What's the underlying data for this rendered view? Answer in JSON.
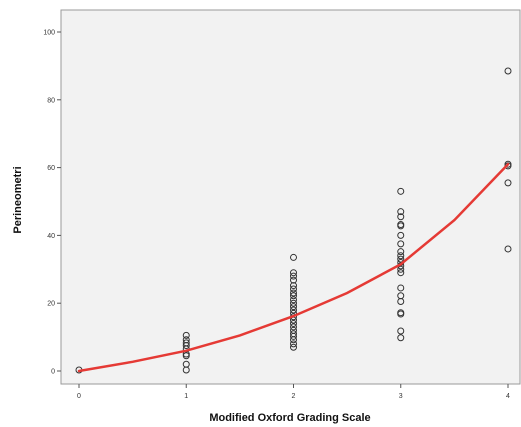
{
  "chart_data": {
    "type": "scatter",
    "title": "",
    "xlabel": "Modified Oxford Grading Scale",
    "ylabel": "Perineometri",
    "xlim": [
      0,
      4
    ],
    "ylim": [
      0,
      100
    ],
    "x_ticks": [
      0,
      1,
      2,
      3,
      4
    ],
    "y_ticks": [
      0,
      20,
      40,
      60,
      80,
      100
    ],
    "grid": false,
    "legend": "none",
    "colors": {
      "points": "#333333",
      "fit_line": "#e53a35",
      "plot_bg": "#f2f2f2",
      "frame": "#9a9a9a"
    },
    "series": [
      {
        "type": "scatter",
        "marker": "open-circle",
        "points": [
          {
            "x": 0,
            "y": 0.3
          },
          {
            "x": 1,
            "y": 0.3
          },
          {
            "x": 1,
            "y": 2.0
          },
          {
            "x": 1,
            "y": 4.5
          },
          {
            "x": 1,
            "y": 5.0
          },
          {
            "x": 1,
            "y": 6.5
          },
          {
            "x": 1,
            "y": 7.5
          },
          {
            "x": 1,
            "y": 8.3
          },
          {
            "x": 1,
            "y": 9.2
          },
          {
            "x": 1,
            "y": 10.5
          },
          {
            "x": 2,
            "y": 7.0
          },
          {
            "x": 2,
            "y": 8.0
          },
          {
            "x": 2,
            "y": 9.2
          },
          {
            "x": 2,
            "y": 10.2
          },
          {
            "x": 2,
            "y": 11.0
          },
          {
            "x": 2,
            "y": 12.0
          },
          {
            "x": 2,
            "y": 13.0
          },
          {
            "x": 2,
            "y": 14.0
          },
          {
            "x": 2,
            "y": 15.0
          },
          {
            "x": 2,
            "y": 16.0
          },
          {
            "x": 2,
            "y": 17.0
          },
          {
            "x": 2,
            "y": 18.0
          },
          {
            "x": 2,
            "y": 19.0
          },
          {
            "x": 2,
            "y": 20.0
          },
          {
            "x": 2,
            "y": 21.0
          },
          {
            "x": 2,
            "y": 22.2
          },
          {
            "x": 2,
            "y": 23.0
          },
          {
            "x": 2,
            "y": 24.2
          },
          {
            "x": 2,
            "y": 25.2
          },
          {
            "x": 2,
            "y": 26.8
          },
          {
            "x": 2,
            "y": 28.0
          },
          {
            "x": 2,
            "y": 29.0
          },
          {
            "x": 2,
            "y": 33.5
          },
          {
            "x": 3,
            "y": 9.8
          },
          {
            "x": 3,
            "y": 11.8
          },
          {
            "x": 3,
            "y": 16.8
          },
          {
            "x": 3,
            "y": 17.2
          },
          {
            "x": 3,
            "y": 20.5
          },
          {
            "x": 3,
            "y": 22.2
          },
          {
            "x": 3,
            "y": 24.5
          },
          {
            "x": 3,
            "y": 29.0
          },
          {
            "x": 3,
            "y": 30.0
          },
          {
            "x": 3,
            "y": 31.0
          },
          {
            "x": 3,
            "y": 32.0
          },
          {
            "x": 3,
            "y": 33.0
          },
          {
            "x": 3,
            "y": 34.0
          },
          {
            "x": 3,
            "y": 35.2
          },
          {
            "x": 3,
            "y": 37.5
          },
          {
            "x": 3,
            "y": 40.0
          },
          {
            "x": 3,
            "y": 42.8
          },
          {
            "x": 3,
            "y": 43.2
          },
          {
            "x": 3,
            "y": 45.5
          },
          {
            "x": 3,
            "y": 47.0
          },
          {
            "x": 3,
            "y": 53.0
          },
          {
            "x": 4,
            "y": 36.0
          },
          {
            "x": 4,
            "y": 55.5
          },
          {
            "x": 4,
            "y": 60.5
          },
          {
            "x": 4,
            "y": 61.0
          },
          {
            "x": 4,
            "y": 88.5
          }
        ]
      },
      {
        "type": "line",
        "curve": "exponential-fit",
        "x": [
          0,
          0.5,
          1,
          1.5,
          2,
          2.5,
          3,
          3.5,
          4
        ],
        "y": [
          0,
          2.7,
          6.0,
          10.5,
          16.2,
          23.0,
          31.5,
          44.5,
          61.0
        ]
      }
    ]
  }
}
